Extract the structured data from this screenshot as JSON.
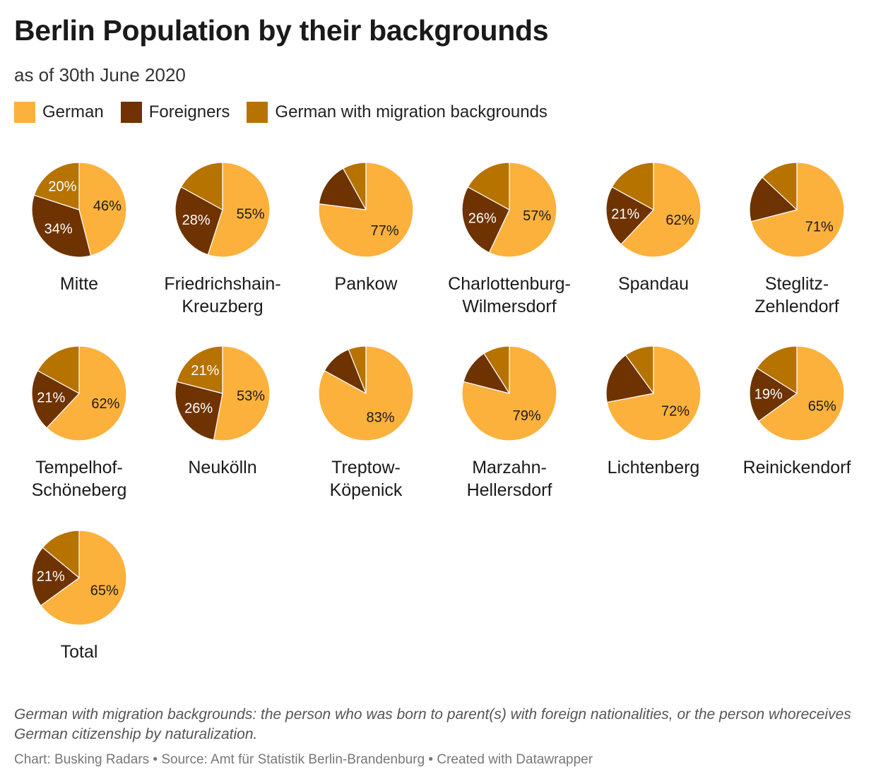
{
  "title": "Berlin Population by their backgrounds",
  "subtitle": "as of 30th June 2020",
  "notes": "German with migration backgrounds: the person who was born to parent(s) with foreign nationalities, or the person whoreceives German citizenship by naturalization.",
  "source": "Chart: Busking Radars • Source: Amt für Statistik Berlin-Brandenburg • Created with Datawrapper",
  "legend": [
    {
      "label": "German",
      "color": "#fcb13d"
    },
    {
      "label": "Foreigners",
      "color": "#6e3300"
    },
    {
      "label": "German with migration backgrounds",
      "color": "#b67300"
    }
  ],
  "chart_data": {
    "type": "pie",
    "series_names": [
      "German",
      "Foreigners",
      "German with migration backgrounds"
    ],
    "colors": [
      "#fcb13d",
      "#6e3300",
      "#b67300"
    ],
    "pies": [
      {
        "name": "Mitte",
        "values": [
          46,
          34,
          20
        ]
      },
      {
        "name": "Friedrichshain-Kreuzberg",
        "values": [
          55,
          28,
          17
        ]
      },
      {
        "name": "Pankow",
        "values": [
          77,
          15,
          8
        ]
      },
      {
        "name": "Charlottenburg-Wilmersdorf",
        "values": [
          57,
          26,
          17
        ]
      },
      {
        "name": "Spandau",
        "values": [
          62,
          21,
          17
        ]
      },
      {
        "name": "Steglitz-Zehlendorf",
        "values": [
          71,
          16,
          13
        ]
      },
      {
        "name": "Tempelhof-Schöneberg",
        "values": [
          62,
          21,
          17
        ]
      },
      {
        "name": "Neukölln",
        "values": [
          53,
          26,
          21
        ]
      },
      {
        "name": "Treptow-Köpenick",
        "values": [
          83,
          11,
          6
        ]
      },
      {
        "name": "Marzahn-Hellersdorf",
        "values": [
          79,
          12,
          9
        ]
      },
      {
        "name": "Lichtenberg",
        "values": [
          72,
          18,
          10
        ]
      },
      {
        "name": "Reinickendorf",
        "values": [
          65,
          19,
          16
        ]
      },
      {
        "name": "Total",
        "values": [
          65,
          21,
          14
        ]
      }
    ],
    "data_labels": {
      "Mitte": [
        "46%",
        "34%",
        "20%"
      ],
      "Friedrichshain-Kreuzberg": [
        "55%",
        "28%",
        ""
      ],
      "Pankow": [
        "77%",
        "",
        ""
      ],
      "Charlottenburg-Wilmersdorf": [
        "57%",
        "26%",
        ""
      ],
      "Spandau": [
        "62%",
        "21%",
        ""
      ],
      "Steglitz-Zehlendorf": [
        "71%",
        "",
        ""
      ],
      "Tempelhof-Schöneberg": [
        "62%",
        "21%",
        ""
      ],
      "Neukölln": [
        "53%",
        "26%",
        "21%"
      ],
      "Treptow-Köpenick": [
        "83%",
        "",
        ""
      ],
      "Marzahn-Hellersdorf": [
        "79%",
        "",
        ""
      ],
      "Lichtenberg": [
        "72%",
        "",
        ""
      ],
      "Reinickendorf": [
        "65%",
        "19%",
        ""
      ],
      "Total": [
        "65%",
        "21%",
        ""
      ]
    },
    "display_names": {
      "Mitte": [
        "Mitte"
      ],
      "Friedrichshain-Kreuzberg": [
        "Friedrichshain-",
        "Kreuzberg"
      ],
      "Pankow": [
        "Pankow"
      ],
      "Charlottenburg-Wilmersdorf": [
        "Charlottenburg-",
        "Wilmersdorf"
      ],
      "Spandau": [
        "Spandau"
      ],
      "Steglitz-Zehlendorf": [
        "Steglitz-",
        "Zehlendorf"
      ],
      "Tempelhof-Schöneberg": [
        "Tempelhof-",
        "Schöneberg"
      ],
      "Neukölln": [
        "Neukölln"
      ],
      "Treptow-Köpenick": [
        "Treptow-",
        "Köpenick"
      ],
      "Marzahn-Hellersdorf": [
        "Marzahn-",
        "Hellersdorf"
      ],
      "Lichtenberg": [
        "Lichtenberg"
      ],
      "Reinickendorf": [
        "Reinickendorf"
      ],
      "Total": [
        "Total"
      ]
    }
  }
}
